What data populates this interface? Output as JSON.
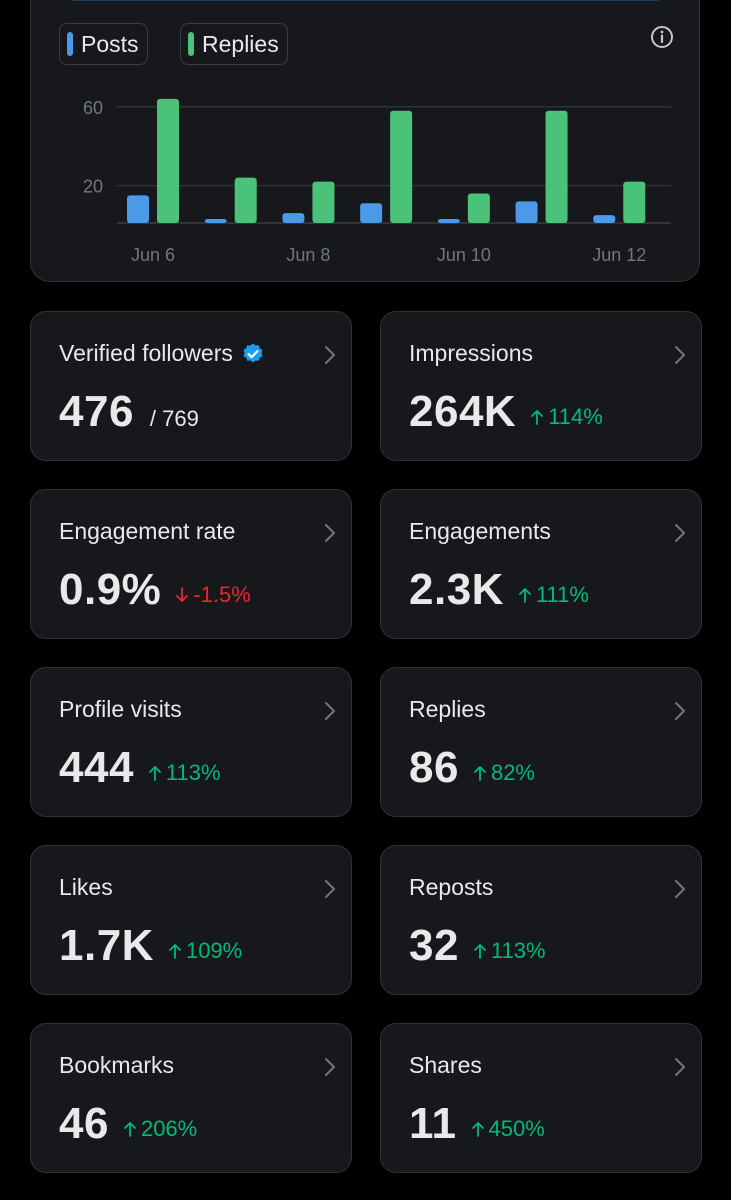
{
  "chart": {
    "legend": [
      {
        "label": "Posts",
        "color": "#4a9ae9"
      },
      {
        "label": "Replies",
        "color": "#4bc27a"
      }
    ]
  },
  "chart_data": {
    "type": "bar",
    "categories": [
      "Jun 6",
      "Jun 7",
      "Jun 8",
      "Jun 9",
      "Jun 10",
      "Jun 11",
      "Jun 12"
    ],
    "x_tick_labels": [
      "Jun 6",
      "Jun 8",
      "Jun 10",
      "Jun 12"
    ],
    "y_tick_labels": [
      "60",
      "20"
    ],
    "y_ticks": [
      60,
      20
    ],
    "ylim": [
      0,
      67
    ],
    "grid": true,
    "series": [
      {
        "name": "Posts",
        "color": "#4a9ae9",
        "values": [
          14,
          2,
          5,
          10,
          2,
          11,
          4
        ]
      },
      {
        "name": "Replies",
        "color": "#4bc27a",
        "values": [
          63,
          23,
          21,
          57,
          15,
          57,
          21
        ]
      }
    ]
  },
  "info_icon": "info-icon",
  "cards": [
    {
      "id": "verified-followers",
      "title": "Verified followers",
      "value": "476",
      "total": "/ 769",
      "badge": "verified-badge-icon"
    },
    {
      "id": "impressions",
      "title": "Impressions",
      "value": "264K",
      "delta": "114%",
      "dir": "up"
    },
    {
      "id": "engagement-rate",
      "title": "Engagement rate",
      "value": "0.9%",
      "delta": "-1.5%",
      "dir": "down"
    },
    {
      "id": "engagements",
      "title": "Engagements",
      "value": "2.3K",
      "delta": "111%",
      "dir": "up"
    },
    {
      "id": "profile-visits",
      "title": "Profile visits",
      "value": "444",
      "delta": "113%",
      "dir": "up"
    },
    {
      "id": "replies",
      "title": "Replies",
      "value": "86",
      "delta": "82%",
      "dir": "up"
    },
    {
      "id": "likes",
      "title": "Likes",
      "value": "1.7K",
      "delta": "109%",
      "dir": "up"
    },
    {
      "id": "reposts",
      "title": "Reposts",
      "value": "32",
      "delta": "113%",
      "dir": "up"
    },
    {
      "id": "bookmarks",
      "title": "Bookmarks",
      "value": "46",
      "delta": "206%",
      "dir": "up"
    },
    {
      "id": "shares",
      "title": "Shares",
      "value": "11",
      "delta": "450%",
      "dir": "up"
    }
  ],
  "colors": {
    "up": "#00ba7c",
    "down": "#f4212e",
    "badge": "#1d9bf0"
  }
}
